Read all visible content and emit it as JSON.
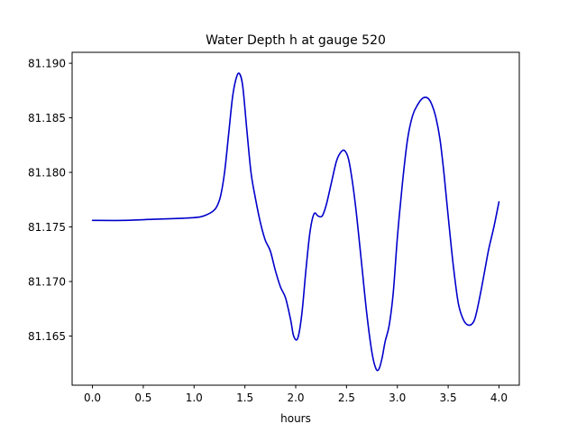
{
  "chart_data": {
    "type": "line",
    "title": "Water Depth h at gauge 520",
    "xlabel": "hours",
    "ylabel": "",
    "xlim": [
      -0.2,
      4.2
    ],
    "ylim": [
      81.1605,
      81.191
    ],
    "xticks": [
      0.0,
      0.5,
      1.0,
      1.5,
      2.0,
      2.5,
      3.0,
      3.5,
      4.0
    ],
    "xtick_labels": [
      "0.0",
      "0.5",
      "1.0",
      "1.5",
      "2.0",
      "2.5",
      "3.0",
      "3.5",
      "4.0"
    ],
    "yticks": [
      81.165,
      81.17,
      81.175,
      81.18,
      81.185,
      81.19
    ],
    "ytick_labels": [
      "81.165",
      "81.170",
      "81.175",
      "81.180",
      "81.185",
      "81.190"
    ],
    "grid": false,
    "series": [
      {
        "color": "#0000cc",
        "x": [
          0.0,
          0.3,
          0.6,
          0.9,
          1.05,
          1.12,
          1.18,
          1.22,
          1.26,
          1.3,
          1.34,
          1.38,
          1.42,
          1.45,
          1.48,
          1.52,
          1.56,
          1.6,
          1.65,
          1.7,
          1.75,
          1.8,
          1.85,
          1.9,
          1.95,
          1.98,
          2.02,
          2.06,
          2.1,
          2.14,
          2.18,
          2.22,
          2.26,
          2.3,
          2.35,
          2.4,
          2.44,
          2.48,
          2.52,
          2.56,
          2.6,
          2.65,
          2.7,
          2.75,
          2.79,
          2.82,
          2.85,
          2.88,
          2.92,
          2.96,
          3.0,
          3.05,
          3.1,
          3.15,
          3.2,
          3.25,
          3.3,
          3.34,
          3.38,
          3.42,
          3.46,
          3.5,
          3.55,
          3.6,
          3.65,
          3.7,
          3.75,
          3.78,
          3.82,
          3.86,
          3.9,
          3.95,
          4.0
        ],
        "y": [
          81.1756,
          81.1756,
          81.1757,
          81.1758,
          81.1759,
          81.1761,
          81.1764,
          81.1768,
          81.1778,
          81.18,
          81.1835,
          81.187,
          81.1888,
          81.189,
          81.1878,
          81.1838,
          81.18,
          81.1778,
          81.1755,
          81.1738,
          81.1728,
          81.171,
          81.1695,
          81.1685,
          81.1665,
          81.165,
          81.1648,
          81.167,
          81.171,
          81.1745,
          81.1762,
          81.176,
          81.176,
          81.177,
          81.179,
          81.181,
          81.1818,
          81.182,
          81.1812,
          81.179,
          81.176,
          81.1715,
          81.167,
          81.1635,
          81.162,
          81.162,
          81.163,
          81.1645,
          81.166,
          81.169,
          81.174,
          81.179,
          81.183,
          81.1852,
          81.1862,
          81.1868,
          81.1868,
          81.1862,
          81.185,
          81.183,
          81.1798,
          81.176,
          81.1715,
          81.168,
          81.1665,
          81.166,
          81.1663,
          81.1672,
          81.169,
          81.171,
          81.173,
          81.175,
          81.1773
        ]
      }
    ]
  }
}
